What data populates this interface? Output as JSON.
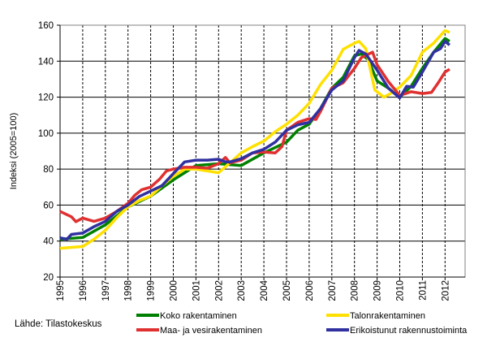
{
  "chart_data": {
    "type": "line",
    "ylabel": "Indeksi (2005=100)",
    "xlabel": "",
    "ylim": [
      20,
      160
    ],
    "xlim": [
      1995,
      2012.9
    ],
    "yticks": [
      20,
      40,
      60,
      80,
      100,
      120,
      140,
      160
    ],
    "xticks": [
      "1995",
      "1996",
      "1997",
      "1998",
      "1999",
      "2000",
      "2001",
      "2002",
      "2003",
      "2004",
      "2005",
      "2006",
      "2007",
      "2008",
      "2009",
      "2010",
      "2011",
      "2012"
    ],
    "grid": {
      "horizontal": "solid",
      "vertical": "dashed"
    },
    "legend_position": "bottom",
    "source": "Lähde: Tilastokeskus",
    "series": [
      {
        "name": "Koko rakentaminen",
        "color": "#008000",
        "x": [
          1995,
          1996,
          1997,
          1998,
          1999,
          2000,
          2000.5,
          2001,
          2002,
          2003,
          2004,
          2005,
          2005.5,
          2006,
          2006.5,
          2007,
          2007.5,
          2008,
          2008.3,
          2008.6,
          2009,
          2009.5,
          2010,
          2010.5,
          2011,
          2011.5,
          2012,
          2012.2
        ],
        "y": [
          41,
          42,
          49,
          59,
          65,
          74,
          78,
          82,
          83,
          82,
          89,
          95,
          101.6,
          105,
          113.6,
          125,
          131,
          143,
          144,
          141,
          129,
          125,
          120,
          126,
          136,
          145,
          152.6,
          151
        ]
      },
      {
        "name": "Talonrakentaminen",
        "color": "#ffe000",
        "x": [
          1995,
          1996,
          1996.5,
          1997,
          1997.5,
          1998,
          1998.5,
          1999,
          1999.5,
          2000,
          2000.5,
          2001,
          2001.5,
          2002,
          2002.5,
          2003,
          2003.5,
          2004,
          2004.5,
          2005,
          2005.5,
          2006,
          2006.5,
          2007,
          2007.5,
          2008,
          2008.2,
          2008.5,
          2008.9,
          2009.3,
          2009.6,
          2010,
          2010.5,
          2011,
          2011.5,
          2012,
          2012.2
        ],
        "y": [
          36,
          37,
          41,
          46,
          53,
          59,
          62.5,
          65,
          70.8,
          76,
          80,
          80,
          79,
          78,
          83.5,
          89,
          92.5,
          95.6,
          100.8,
          105,
          110,
          116.6,
          127,
          135,
          146.6,
          150,
          151,
          147,
          124,
          120,
          122,
          125.6,
          132,
          145,
          150,
          157,
          156
        ]
      },
      {
        "name": "Maa- ja vesirakentaminen",
        "color": "#e03030",
        "x": [
          1995,
          1995.5,
          1995.7,
          1996,
          1996.5,
          1997,
          1997.5,
          1998,
          1998.3,
          1998.6,
          1999,
          1999.4,
          1999.7,
          2000,
          2000.5,
          2001,
          2001.5,
          2002,
          2002.3,
          2002.5,
          2003,
          2003.5,
          2004,
          2004.5,
          2004.8,
          2005,
          2005.5,
          2006,
          2006.3,
          2006.5,
          2007,
          2007.5,
          2008,
          2008.3,
          2008.8,
          2009,
          2009.5,
          2010,
          2010.5,
          2011,
          2011.4,
          2011.7,
          2012,
          2012.2
        ],
        "y": [
          56.5,
          53.5,
          50.8,
          52.8,
          51,
          52.8,
          56.5,
          61,
          65.5,
          68.5,
          70,
          74.5,
          79,
          80,
          81,
          81,
          80.5,
          83,
          86.5,
          83.5,
          85,
          89,
          89.5,
          89,
          92.5,
          101.6,
          106,
          108,
          107.6,
          112,
          125,
          128,
          136,
          142,
          145,
          138,
          128.6,
          121,
          123,
          122,
          122.6,
          128,
          134,
          135.5
        ]
      },
      {
        "name": "Erikoistunut rakennustoiminta",
        "color": "#3030a0",
        "x": [
          1995,
          1995.3,
          1995.5,
          1996,
          1996.5,
          1997,
          1997.5,
          1998,
          1998.5,
          1999,
          1999.5,
          2000,
          2000.5,
          2001,
          2001.5,
          2002,
          2002.3,
          2002.5,
          2003,
          2003.5,
          2004,
          2004.5,
          2005,
          2005.5,
          2006,
          2006.5,
          2007,
          2007.5,
          2008,
          2008.2,
          2008.5,
          2009,
          2009.5,
          2010,
          2010.3,
          2010.6,
          2011,
          2011.5,
          2011.8,
          2012,
          2012.2
        ],
        "y": [
          41.8,
          41,
          43.7,
          44.5,
          48,
          51,
          56.5,
          60,
          64.8,
          67.8,
          70.8,
          77.5,
          84,
          85,
          85,
          85.5,
          84,
          84,
          85.8,
          89,
          91,
          95,
          101.6,
          104.6,
          106,
          113.6,
          124,
          129,
          142,
          146,
          144,
          135,
          125,
          119.6,
          126,
          125.6,
          134,
          145,
          147,
          151,
          149
        ]
      }
    ]
  }
}
